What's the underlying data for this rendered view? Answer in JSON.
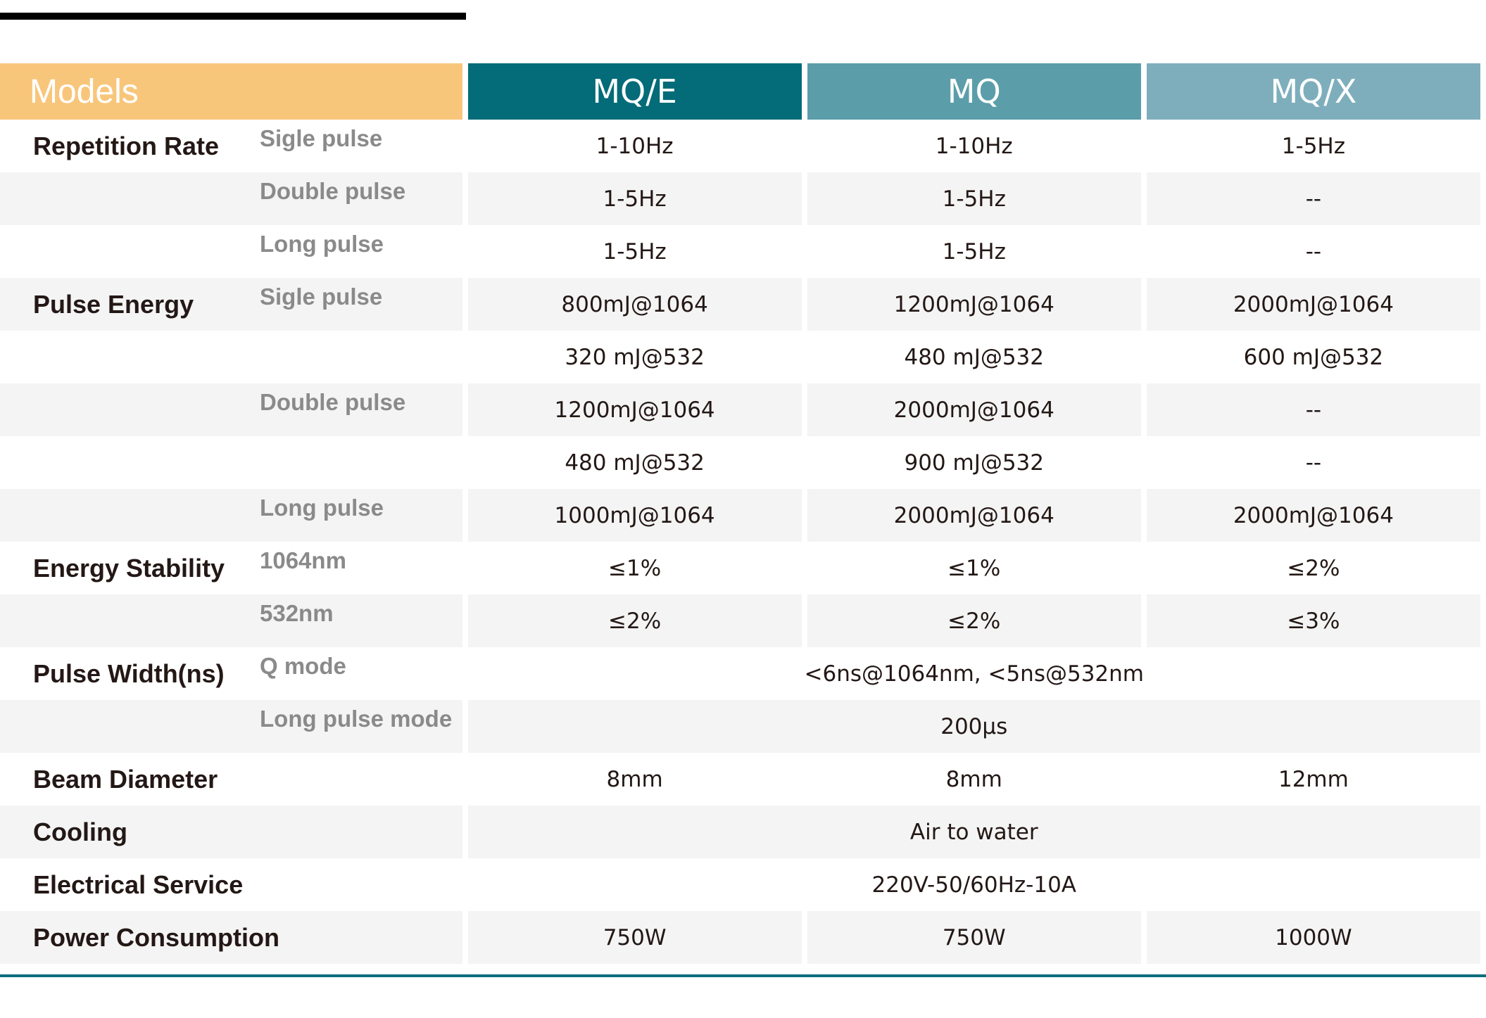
{
  "header": {
    "models_label": "Models",
    "model_1": "MQ/E",
    "model_2": "MQ",
    "model_3": "MQ/X"
  },
  "rows": [
    {
      "group": "Repetition Rate",
      "sub": "Sigle pulse",
      "values": [
        "1-10Hz",
        "1-10Hz",
        "1-5Hz"
      ]
    },
    {
      "group": "",
      "sub": "Double pulse",
      "values": [
        "1-5Hz",
        "1-5Hz",
        "--"
      ]
    },
    {
      "group": "",
      "sub": "Long pulse",
      "values": [
        "1-5Hz",
        "1-5Hz",
        "--"
      ]
    },
    {
      "group": "Pulse Energy",
      "sub": "Sigle pulse",
      "values": [
        "800mJ@1064",
        "1200mJ@1064",
        "2000mJ@1064"
      ]
    },
    {
      "group": "",
      "sub": "",
      "values": [
        "320 mJ@532",
        "480 mJ@532",
        "600 mJ@532"
      ]
    },
    {
      "group": "",
      "sub": "Double pulse",
      "values": [
        "1200mJ@1064",
        "2000mJ@1064",
        "--"
      ]
    },
    {
      "group": "",
      "sub": "",
      "values": [
        "480 mJ@532",
        "900 mJ@532",
        "--"
      ]
    },
    {
      "group": "",
      "sub": "Long pulse",
      "values": [
        "1000mJ@1064",
        "2000mJ@1064",
        "2000mJ@1064"
      ]
    },
    {
      "group": "Energy Stability",
      "sub": "1064nm",
      "values": [
        "≤1%",
        "≤1%",
        "≤2%"
      ]
    },
    {
      "group": "",
      "sub": "532nm",
      "values": [
        "≤2%",
        "≤2%",
        "≤3%"
      ]
    },
    {
      "group": "Pulse Width(ns)",
      "sub": "Q mode",
      "values": [
        "<6ns@1064nm, <5ns@532nm"
      ]
    },
    {
      "group": "",
      "sub": "Long pulse mode",
      "values": [
        "200μs"
      ]
    },
    {
      "group": "Beam Diameter",
      "sub": "",
      "values": [
        "8mm",
        "8mm",
        "12mm"
      ]
    },
    {
      "group": "Cooling",
      "sub": "",
      "values": [
        "Air to water"
      ]
    },
    {
      "group": "Electrical Service",
      "sub": "",
      "values": [
        "220V-50/60Hz-10A"
      ]
    },
    {
      "group": "Power Consumption",
      "sub": "",
      "values": [
        "750W",
        "750W",
        "1000W"
      ]
    }
  ],
  "colors": {
    "models_header": "#f8c67b",
    "mqe_header": "#046b78",
    "mq_header": "#5b9ea9",
    "mqx_header": "#7eaebc",
    "stripe": "#f4f4f4",
    "rule": "#0d6e7c"
  }
}
